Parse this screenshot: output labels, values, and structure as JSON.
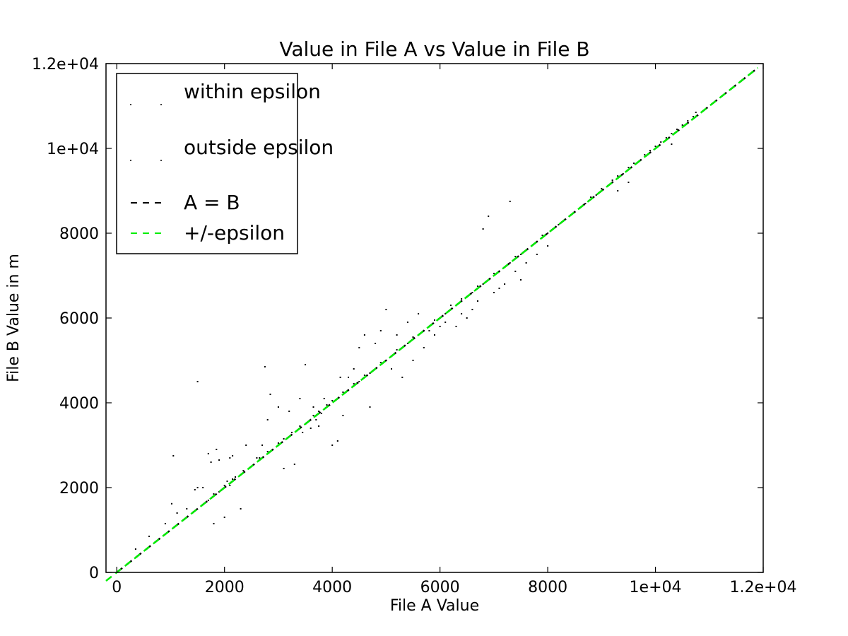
{
  "chart_data": {
    "type": "scatter",
    "title": "Value in File A vs Value in File B",
    "xlabel": "File A Value",
    "ylabel": "File B Value in m",
    "xlim": [
      -200,
      12000
    ],
    "ylim": [
      0,
      12000
    ],
    "x_ticks": [
      {
        "value": 0,
        "label": "0"
      },
      {
        "value": 2000,
        "label": "2000"
      },
      {
        "value": 4000,
        "label": "4000"
      },
      {
        "value": 6000,
        "label": "6000"
      },
      {
        "value": 8000,
        "label": "8000"
      },
      {
        "value": 10000,
        "label": "1e+04"
      },
      {
        "value": 12000,
        "label": "1.2e+04"
      }
    ],
    "y_ticks": [
      {
        "value": 0,
        "label": "0"
      },
      {
        "value": 2000,
        "label": "2000"
      },
      {
        "value": 4000,
        "label": "4000"
      },
      {
        "value": 6000,
        "label": "6000"
      },
      {
        "value": 8000,
        "label": "8000"
      },
      {
        "value": 10000,
        "label": "1e+04"
      },
      {
        "value": 12000,
        "label": "1.2e+04"
      }
    ],
    "grid": false,
    "legend_position": "upper-left",
    "series": [
      {
        "name": "within epsilon",
        "kind": "points",
        "color": "#000000",
        "points": [
          [
            1020,
            1620
          ],
          [
            1120,
            1400
          ],
          [
            1300,
            1500
          ],
          [
            1450,
            1950
          ],
          [
            1500,
            2000
          ],
          [
            1600,
            1600
          ],
          [
            1700,
            1700
          ],
          [
            1800,
            1850
          ],
          [
            1900,
            1900
          ],
          [
            2000,
            2050
          ],
          [
            2050,
            2150
          ],
          [
            2100,
            2050
          ],
          [
            2150,
            2200
          ],
          [
            2200,
            2250
          ],
          [
            2350,
            2400
          ],
          [
            2500,
            2500
          ],
          [
            2650,
            2700
          ],
          [
            2800,
            2850
          ],
          [
            3000,
            3050
          ],
          [
            3100,
            3150
          ],
          [
            3250,
            3300
          ],
          [
            3400,
            3450
          ],
          [
            3500,
            3500
          ],
          [
            3550,
            3550
          ],
          [
            3650,
            3700
          ],
          [
            3750,
            3800
          ],
          [
            3900,
            3950
          ],
          [
            4000,
            4050
          ],
          [
            4100,
            4100
          ],
          [
            4200,
            4250
          ],
          [
            4300,
            4300
          ],
          [
            4400,
            4450
          ],
          [
            4500,
            4500
          ],
          [
            4600,
            4650
          ],
          [
            4700,
            4700
          ],
          [
            4800,
            4800
          ],
          [
            4900,
            4950
          ],
          [
            5000,
            5000
          ],
          [
            5100,
            5100
          ],
          [
            5200,
            5250
          ],
          [
            5300,
            5300
          ],
          [
            5400,
            5400
          ],
          [
            5500,
            5550
          ],
          [
            5600,
            5600
          ],
          [
            5700,
            5700
          ],
          [
            5800,
            5800
          ],
          [
            5900,
            5950
          ],
          [
            6000,
            6000
          ],
          [
            6050,
            6050
          ],
          [
            6100,
            6100
          ],
          [
            6200,
            6200
          ],
          [
            6300,
            6300
          ],
          [
            6400,
            6450
          ],
          [
            6500,
            6500
          ],
          [
            6600,
            6600
          ],
          [
            6700,
            6750
          ],
          [
            6800,
            6800
          ],
          [
            6900,
            6900
          ],
          [
            7000,
            7050
          ],
          [
            7100,
            7100
          ],
          [
            7200,
            7200
          ],
          [
            7300,
            7300
          ],
          [
            7400,
            7450
          ],
          [
            7500,
            7500
          ],
          [
            7600,
            7600
          ],
          [
            7700,
            7700
          ],
          [
            7800,
            7800
          ],
          [
            7900,
            7950
          ],
          [
            8000,
            8000
          ],
          [
            8100,
            8100
          ],
          [
            8200,
            8200
          ],
          [
            8300,
            8300
          ],
          [
            8400,
            8400
          ],
          [
            8500,
            8500
          ],
          [
            8600,
            8600
          ],
          [
            8700,
            8700
          ],
          [
            8800,
            8850
          ],
          [
            8900,
            8900
          ],
          [
            9000,
            9050
          ],
          [
            9100,
            9100
          ],
          [
            9200,
            9250
          ],
          [
            9300,
            9350
          ],
          [
            9400,
            9400
          ],
          [
            9500,
            9550
          ],
          [
            9600,
            9650
          ],
          [
            9700,
            9700
          ],
          [
            9800,
            9850
          ],
          [
            9900,
            9950
          ],
          [
            10000,
            10050
          ],
          [
            10100,
            10150
          ],
          [
            10200,
            10250
          ],
          [
            10300,
            10350
          ],
          [
            10400,
            10450
          ],
          [
            10500,
            10550
          ],
          [
            10600,
            10650
          ],
          [
            10700,
            10750
          ],
          [
            10750,
            10850
          ]
        ]
      },
      {
        "name": "outside epsilon",
        "kind": "points",
        "color": "#000000",
        "points": [
          [
            350,
            550
          ],
          [
            600,
            850
          ],
          [
            900,
            1150
          ],
          [
            1050,
            2750
          ],
          [
            1500,
            4500
          ],
          [
            1600,
            2000
          ],
          [
            1700,
            2800
          ],
          [
            1750,
            2600
          ],
          [
            1800,
            1150
          ],
          [
            1850,
            2900
          ],
          [
            1900,
            2650
          ],
          [
            2000,
            1300
          ],
          [
            2100,
            2700
          ],
          [
            2150,
            2750
          ],
          [
            2300,
            1500
          ],
          [
            2400,
            3000
          ],
          [
            2600,
            2700
          ],
          [
            2700,
            3000
          ],
          [
            2750,
            4850
          ],
          [
            2800,
            3600
          ],
          [
            2850,
            4200
          ],
          [
            3000,
            3900
          ],
          [
            3100,
            2450
          ],
          [
            3200,
            3800
          ],
          [
            3300,
            2550
          ],
          [
            3400,
            4100
          ],
          [
            3450,
            3300
          ],
          [
            3500,
            4900
          ],
          [
            3600,
            3400
          ],
          [
            3650,
            3900
          ],
          [
            3700,
            3600
          ],
          [
            3750,
            3450
          ],
          [
            3800,
            3750
          ],
          [
            3850,
            4100
          ],
          [
            4000,
            3000
          ],
          [
            4100,
            3100
          ],
          [
            4150,
            4600
          ],
          [
            4200,
            3700
          ],
          [
            4300,
            4600
          ],
          [
            4400,
            4800
          ],
          [
            4500,
            5300
          ],
          [
            4600,
            5600
          ],
          [
            4700,
            3900
          ],
          [
            4800,
            5400
          ],
          [
            4900,
            5700
          ],
          [
            5000,
            6200
          ],
          [
            5100,
            4800
          ],
          [
            5200,
            5600
          ],
          [
            5300,
            4600
          ],
          [
            5400,
            5900
          ],
          [
            5500,
            5000
          ],
          [
            5600,
            6100
          ],
          [
            5700,
            5300
          ],
          [
            5800,
            5700
          ],
          [
            5900,
            5600
          ],
          [
            6000,
            5800
          ],
          [
            6100,
            5900
          ],
          [
            6200,
            6300
          ],
          [
            6300,
            5800
          ],
          [
            6400,
            6100
          ],
          [
            6500,
            6000
          ],
          [
            6600,
            6200
          ],
          [
            6700,
            6400
          ],
          [
            6800,
            8100
          ],
          [
            6900,
            8400
          ],
          [
            7000,
            6600
          ],
          [
            7100,
            6700
          ],
          [
            7200,
            6800
          ],
          [
            7300,
            8750
          ],
          [
            7400,
            7100
          ],
          [
            7500,
            6900
          ],
          [
            7600,
            7300
          ],
          [
            7800,
            7500
          ],
          [
            8000,
            7700
          ],
          [
            9300,
            9000
          ],
          [
            9500,
            9200
          ],
          [
            10300,
            10100
          ]
        ]
      },
      {
        "name": "A = B",
        "kind": "line",
        "color": "#000000",
        "x": [
          0,
          11900
        ],
        "y": [
          0,
          11900
        ]
      },
      {
        "name": "+/-epsilon",
        "kind": "line",
        "color": "#00ee00",
        "x": [
          -200,
          11900
        ],
        "y": [
          -200,
          11900
        ]
      }
    ]
  }
}
